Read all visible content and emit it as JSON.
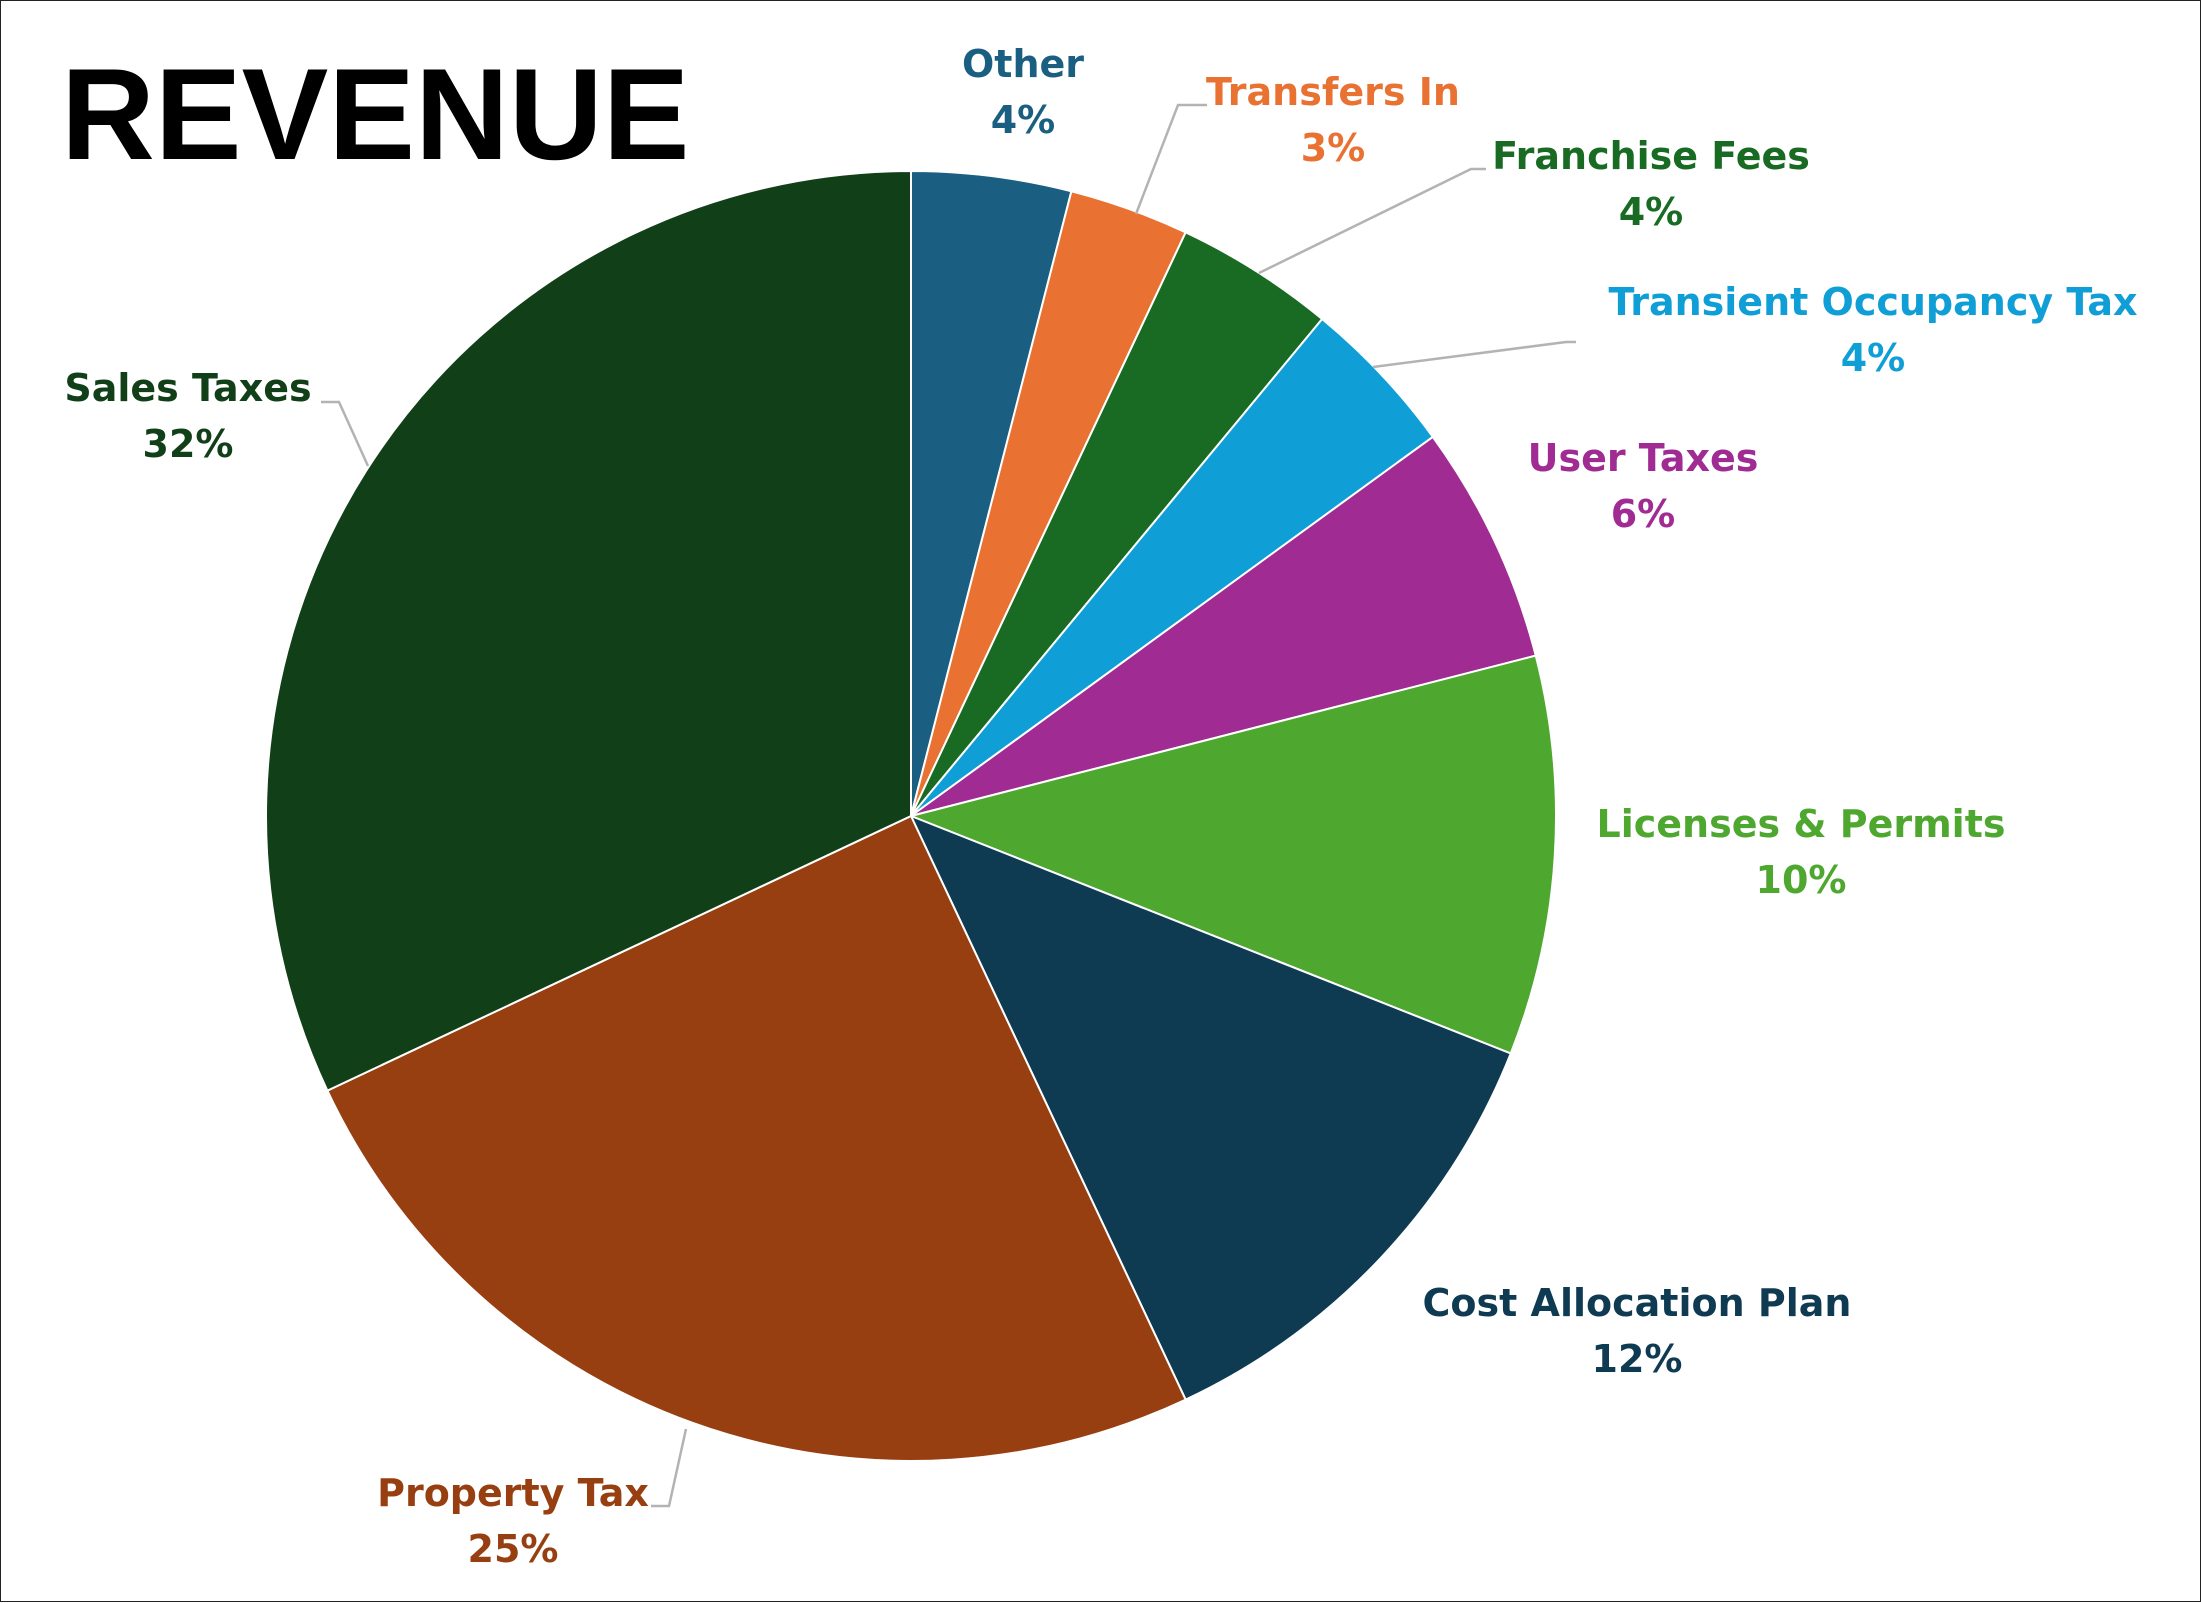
{
  "chart_data": {
    "type": "pie",
    "title": "REVENUE",
    "start_angle": "12 o'clock",
    "direction": "clockwise",
    "slices": [
      {
        "label": "Other",
        "value": 4,
        "display": "4%",
        "color": "#1a5f82"
      },
      {
        "label": "Transfers In",
        "value": 3,
        "display": "3%",
        "color": "#e97132"
      },
      {
        "label": "Franchise Fees",
        "value": 4,
        "display": "4%",
        "color": "#196b24"
      },
      {
        "label": "Transient Occupancy Tax",
        "value": 4,
        "display": "4%",
        "color": "#0f9ed5"
      },
      {
        "label": "User Taxes",
        "value": 6,
        "display": "6%",
        "color": "#a02b93"
      },
      {
        "label": "Licenses & Permits",
        "value": 10,
        "display": "10%",
        "color": "#4ea72e"
      },
      {
        "label": "Cost Allocation Plan",
        "value": 12,
        "display": "12%",
        "color": "#0e3a52"
      },
      {
        "label": "Property Tax",
        "value": 25,
        "display": "25%",
        "color": "#973f11"
      },
      {
        "label": "Sales Taxes",
        "value": 32,
        "display": "32%",
        "color": "#113f18"
      }
    ]
  }
}
